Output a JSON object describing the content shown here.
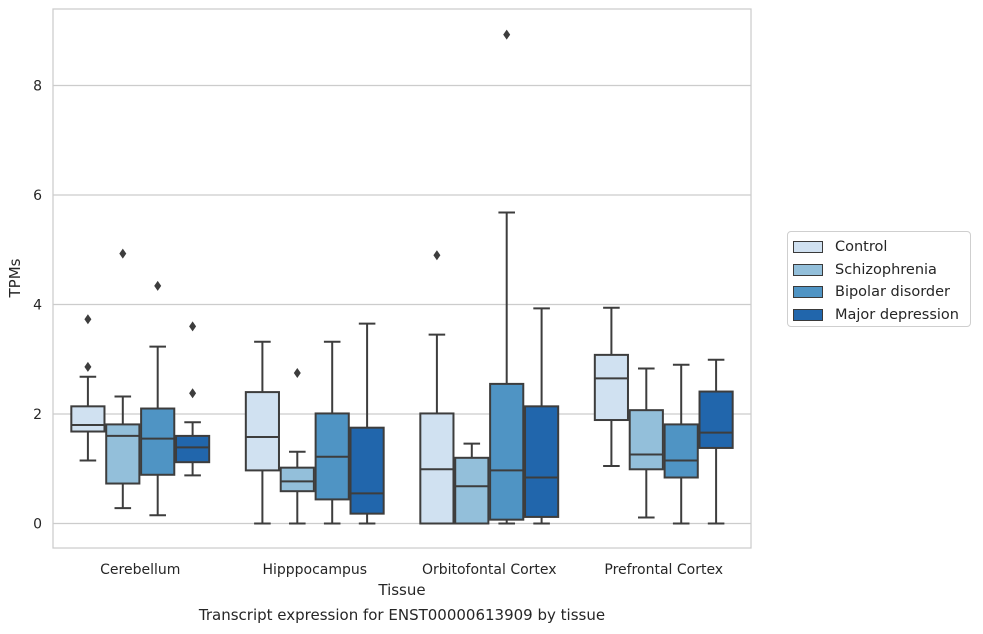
{
  "chart_data": {
    "type": "boxplot",
    "title": "",
    "caption": "Transcript expression for ENST00000613909 by tissue",
    "xlabel": "Tissue",
    "ylabel": "TPMs",
    "ylim": [
      -0.45,
      9.3
    ],
    "yticks": [
      0,
      2,
      4,
      6,
      8
    ],
    "grid": true,
    "legend_position": "right",
    "categories": [
      "Cerebellum",
      "Hipppocampus",
      "Orbitofontal Cortex",
      "Prefrontal Cortex"
    ],
    "series": [
      {
        "name": "Control",
        "color": "#d0e1f1",
        "boxes": [
          {
            "whislo": 1.15,
            "q1": 1.68,
            "med": 1.8,
            "q3": 2.14,
            "whishi": 2.68,
            "fliers": [
              2.86,
              3.73
            ]
          },
          {
            "whislo": 0.0,
            "q1": 0.97,
            "med": 1.58,
            "q3": 2.4,
            "whishi": 3.32,
            "fliers": []
          },
          {
            "whislo": 0.0,
            "q1": 0.0,
            "med": 0.99,
            "q3": 2.01,
            "whishi": 3.45,
            "fliers": [
              4.9
            ]
          },
          {
            "whislo": 1.05,
            "q1": 1.89,
            "med": 2.65,
            "q3": 3.08,
            "whishi": 3.94,
            "fliers": []
          }
        ]
      },
      {
        "name": "Schizophrenia",
        "color": "#93bfda",
        "boxes": [
          {
            "whislo": 0.28,
            "q1": 0.73,
            "med": 1.6,
            "q3": 1.81,
            "whishi": 2.32,
            "fliers": [
              4.93
            ]
          },
          {
            "whislo": 0.0,
            "q1": 0.59,
            "med": 0.77,
            "q3": 1.02,
            "whishi": 1.31,
            "fliers": [
              2.75
            ]
          },
          {
            "whislo": 0.0,
            "q1": 0.0,
            "med": 0.68,
            "q3": 1.2,
            "whishi": 1.46,
            "fliers": []
          },
          {
            "whislo": 0.11,
            "q1": 0.99,
            "med": 1.26,
            "q3": 2.07,
            "whishi": 2.83,
            "fliers": []
          }
        ]
      },
      {
        "name": "Bipolar disorder",
        "color": "#4f94c4",
        "boxes": [
          {
            "whislo": 0.15,
            "q1": 0.89,
            "med": 1.55,
            "q3": 2.1,
            "whishi": 3.23,
            "fliers": [
              4.34
            ]
          },
          {
            "whislo": 0.0,
            "q1": 0.44,
            "med": 1.22,
            "q3": 2.01,
            "whishi": 3.32,
            "fliers": []
          },
          {
            "whislo": 0.0,
            "q1": 0.07,
            "med": 0.97,
            "q3": 2.55,
            "whishi": 5.68,
            "fliers": [
              8.93
            ]
          },
          {
            "whislo": 0.0,
            "q1": 0.84,
            "med": 1.15,
            "q3": 1.81,
            "whishi": 2.9,
            "fliers": []
          }
        ]
      },
      {
        "name": "Major depression",
        "color": "#2166ac",
        "boxes": [
          {
            "whislo": 0.88,
            "q1": 1.12,
            "med": 1.39,
            "q3": 1.6,
            "whishi": 1.85,
            "fliers": [
              2.38,
              3.6
            ]
          },
          {
            "whislo": 0.0,
            "q1": 0.18,
            "med": 0.55,
            "q3": 1.75,
            "whishi": 3.65,
            "fliers": []
          },
          {
            "whislo": 0.0,
            "q1": 0.12,
            "med": 0.84,
            "q3": 2.14,
            "whishi": 3.93,
            "fliers": []
          },
          {
            "whislo": 0.0,
            "q1": 1.38,
            "med": 1.66,
            "q3": 2.41,
            "whishi": 2.99,
            "fliers": []
          }
        ]
      }
    ]
  }
}
